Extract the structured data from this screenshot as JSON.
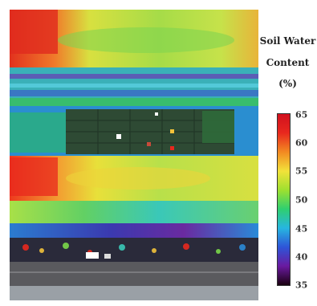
{
  "legend": {
    "title_lines": [
      "Soil Water",
      "Content",
      "(%)"
    ],
    "ticks": [
      "65",
      "60",
      "55",
      "50",
      "45",
      "40",
      "35"
    ],
    "min": 35,
    "max": 65,
    "gradient": [
      "#1a0010",
      "#6a1aa0",
      "#2e55d8",
      "#27b6e0",
      "#2fcf70",
      "#9ee030",
      "#f2e23a",
      "#f28a22",
      "#e8281e",
      "#d0101e"
    ]
  },
  "map": {
    "bands": [
      {
        "label": "top-field",
        "colors": [
          "#e83a22",
          "#f2b43a",
          "#bde04a",
          "#7ad84a"
        ]
      },
      {
        "label": "road-strip",
        "colors": [
          "#2aa0c8",
          "#6c3fb4",
          "#3cc04a"
        ]
      },
      {
        "label": "plot-grid",
        "colors": [
          "#2e4a3a",
          "#3d7a3a",
          "#1d3f6a"
        ]
      },
      {
        "label": "middle-field",
        "colors": [
          "#f24a1e",
          "#f2c03a",
          "#7cd84a",
          "#b4e24a"
        ]
      },
      {
        "label": "lower-field",
        "colors": [
          "#4cc8b4",
          "#2a8ad8",
          "#5a2a9a",
          "#8ad84a"
        ]
      },
      {
        "label": "road",
        "colors": [
          "#4a4a4a",
          "#6a6a6a"
        ]
      }
    ],
    "plot_markers": [
      {
        "color": "#ffffff"
      },
      {
        "color": "#c84a3a"
      },
      {
        "color": "#f2c23a"
      },
      {
        "color": "#e8281e"
      },
      {
        "color": "#ffffff"
      }
    ]
  }
}
